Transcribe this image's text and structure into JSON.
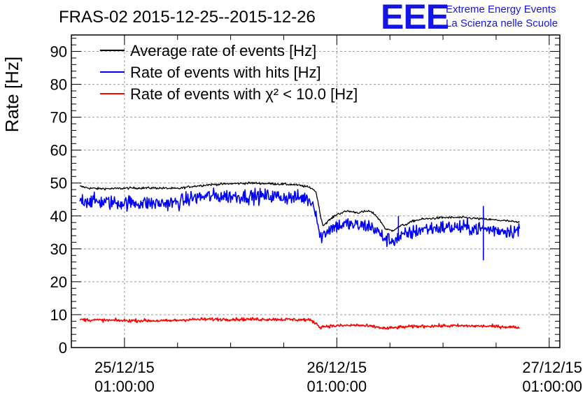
{
  "chart_data": {
    "type": "line",
    "title": "FRAS-02 2015-12-25--2015-12-26",
    "ylabel": "Rate [Hz]",
    "xlabel": "",
    "ylim": [
      0,
      95
    ],
    "xlim": [
      -0.25,
      2.05
    ],
    "x_unit": "days since 25/12/15 01:00:00",
    "grid": true,
    "legend_position": "top-left",
    "y_ticks": [
      0,
      10,
      20,
      30,
      40,
      50,
      60,
      70,
      80,
      90
    ],
    "x_ticks": [
      {
        "value": 0,
        "date": "25/12/15",
        "time": "01:00:00"
      },
      {
        "value": 1,
        "date": "26/12/15",
        "time": "01:00:00"
      },
      {
        "value": 2,
        "date": "27/12/15",
        "time": "01:00:00"
      }
    ],
    "series": [
      {
        "name": "Average rate of events [Hz]",
        "color": "#000000",
        "noise": 0.25,
        "points": [
          [
            -0.21,
            49
          ],
          [
            -0.17,
            48.5
          ],
          [
            -0.13,
            48.3
          ],
          [
            -0.05,
            48.3
          ],
          [
            0.05,
            48.5
          ],
          [
            0.15,
            48.5
          ],
          [
            0.25,
            48.3
          ],
          [
            0.32,
            49
          ],
          [
            0.4,
            49.5
          ],
          [
            0.5,
            49.8
          ],
          [
            0.6,
            50
          ],
          [
            0.7,
            49.8
          ],
          [
            0.8,
            49.5
          ],
          [
            0.85,
            49
          ],
          [
            0.88,
            48.5
          ],
          [
            0.9,
            47.5
          ],
          [
            0.91,
            45
          ],
          [
            0.92,
            41
          ],
          [
            0.935,
            37
          ],
          [
            0.96,
            38.5
          ],
          [
            1.0,
            40.5
          ],
          [
            1.05,
            41.5
          ],
          [
            1.1,
            41
          ],
          [
            1.15,
            41.5
          ],
          [
            1.18,
            40.5
          ],
          [
            1.21,
            38
          ],
          [
            1.23,
            36
          ],
          [
            1.26,
            35.5
          ],
          [
            1.3,
            37
          ],
          [
            1.33,
            37.5
          ],
          [
            1.36,
            38.5
          ],
          [
            1.4,
            39
          ],
          [
            1.5,
            39.5
          ],
          [
            1.6,
            39.5
          ],
          [
            1.7,
            39
          ],
          [
            1.8,
            38.5
          ],
          [
            1.86,
            38
          ]
        ]
      },
      {
        "name": "Rate of events with hits [Hz]",
        "color": "#0000ff",
        "noise": 1.6,
        "points": [
          [
            -0.21,
            45
          ],
          [
            -0.15,
            44.5
          ],
          [
            -0.05,
            44
          ],
          [
            0.05,
            44
          ],
          [
            0.15,
            43.8
          ],
          [
            0.25,
            44
          ],
          [
            0.32,
            45.5
          ],
          [
            0.4,
            46
          ],
          [
            0.5,
            46
          ],
          [
            0.6,
            46
          ],
          [
            0.7,
            46
          ],
          [
            0.8,
            45.5
          ],
          [
            0.85,
            45.5
          ],
          [
            0.88,
            44.5
          ],
          [
            0.9,
            42
          ],
          [
            0.91,
            38
          ],
          [
            0.92,
            33.5
          ],
          [
            0.94,
            34.5
          ],
          [
            0.96,
            36
          ],
          [
            1.0,
            37
          ],
          [
            1.05,
            37.5
          ],
          [
            1.1,
            37
          ],
          [
            1.15,
            37
          ],
          [
            1.18,
            36
          ],
          [
            1.21,
            34
          ],
          [
            1.23,
            33
          ],
          [
            1.26,
            32.5
          ],
          [
            1.3,
            33.5
          ],
          [
            1.33,
            34.5
          ],
          [
            1.36,
            35
          ],
          [
            1.4,
            36
          ],
          [
            1.5,
            36.5
          ],
          [
            1.6,
            36.5
          ],
          [
            1.7,
            36
          ],
          [
            1.8,
            35.5
          ],
          [
            1.86,
            35.5
          ]
        ],
        "error_bars": [
          {
            "x": 1.29,
            "y": 35.5,
            "low": 32.5,
            "high": 40
          },
          {
            "x": 1.69,
            "y": 35,
            "low": 26.5,
            "high": 43
          }
        ]
      },
      {
        "name": "Rate of events with χ² < 10.0 [Hz]",
        "color": "#ff0000",
        "noise": 0.35,
        "points": [
          [
            -0.21,
            8.5
          ],
          [
            -0.1,
            8.3
          ],
          [
            0.0,
            8.2
          ],
          [
            0.1,
            8.2
          ],
          [
            0.2,
            8.1
          ],
          [
            0.3,
            8.5
          ],
          [
            0.4,
            8.6
          ],
          [
            0.5,
            8.6
          ],
          [
            0.6,
            8.6
          ],
          [
            0.7,
            8.6
          ],
          [
            0.8,
            8.5
          ],
          [
            0.87,
            8.4
          ],
          [
            0.9,
            7.5
          ],
          [
            0.92,
            6.2
          ],
          [
            0.95,
            6.5
          ],
          [
            1.0,
            6.6
          ],
          [
            1.1,
            6.8
          ],
          [
            1.18,
            6.3
          ],
          [
            1.23,
            5.8
          ],
          [
            1.3,
            6.2
          ],
          [
            1.4,
            6.5
          ],
          [
            1.5,
            6.6
          ],
          [
            1.6,
            6.6
          ],
          [
            1.7,
            6.5
          ],
          [
            1.8,
            6.3
          ],
          [
            1.86,
            6.1
          ]
        ]
      }
    ]
  },
  "logo": {
    "mark": "EEE",
    "line1": "Extreme Energy Events",
    "line2": "La Scienza nelle Scuole"
  }
}
